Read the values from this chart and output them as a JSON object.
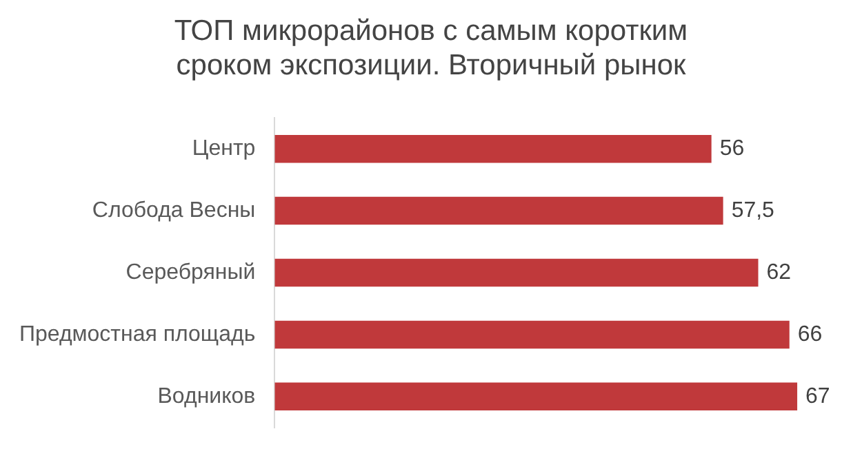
{
  "chart_data": {
    "type": "bar",
    "orientation": "horizontal",
    "title": "ТОП микрорайонов с самым коротким сроком экспозиции. Вторичный рынок",
    "categories": [
      "Центр",
      "Слобода Весны",
      "Серебряный",
      "Предмостная площадь",
      "Водников"
    ],
    "values": [
      56,
      57.5,
      62,
      66,
      67
    ],
    "value_labels": [
      "56",
      "57,5",
      "62",
      "66",
      "67"
    ],
    "color": "#c0393b",
    "tick_labels": "y",
    "grid": false,
    "legend": false
  }
}
